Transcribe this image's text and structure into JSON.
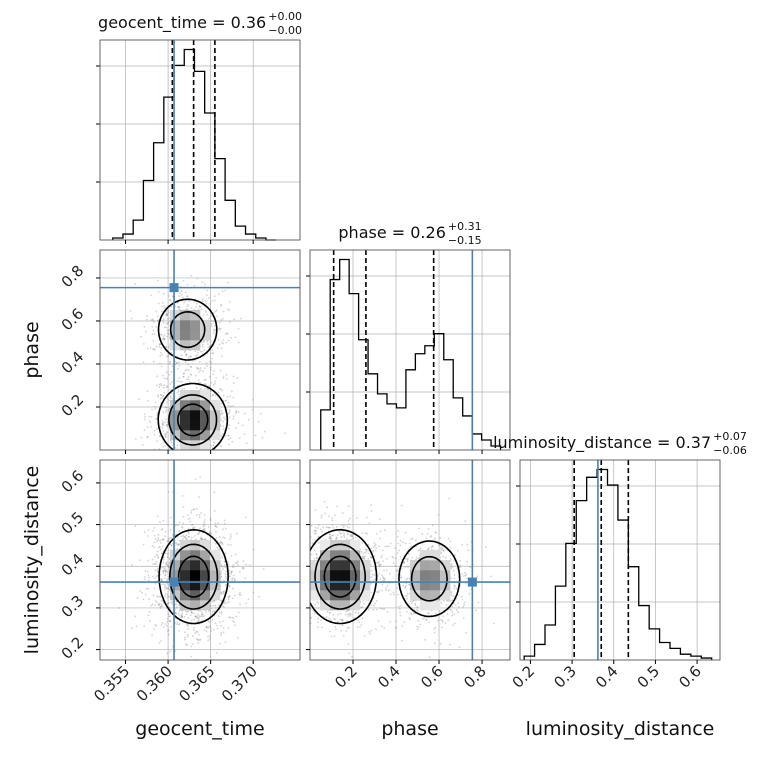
{
  "chart_data": {
    "type": "corner",
    "parameters": [
      "geocent_time",
      "phase",
      "luminosity_distance"
    ],
    "truths": {
      "geocent_time": 0.3607,
      "phase": 0.755,
      "luminosity_distance": 0.362
    },
    "titles": [
      {
        "param": "geocent_time",
        "prefix": "geocent_time = 0.36",
        "plus": "+0.00",
        "minus": "−0.00"
      },
      {
        "param": "phase",
        "prefix": "phase = 0.26",
        "plus": "+0.31",
        "minus": "−0.15"
      },
      {
        "param": "luminosity_distance",
        "prefix": "luminosity_distance = 0.37",
        "plus": "+0.07",
        "minus": "−0.06"
      }
    ],
    "axes": {
      "geocent_time": {
        "range": [
          0.352,
          0.3755
        ],
        "ticks": [
          0.355,
          0.36,
          0.365,
          0.37
        ],
        "tick_labels": [
          "0.355",
          "0.360",
          "0.365",
          "0.370"
        ],
        "label": "geocent_time"
      },
      "phase": {
        "range": [
          0.0,
          0.93
        ],
        "ticks": [
          0.2,
          0.4,
          0.6,
          0.8
        ],
        "tick_labels": [
          "0.2",
          "0.4",
          "0.6",
          "0.8"
        ],
        "label": "phase"
      },
      "luminosity_distance": {
        "range": [
          0.175,
          0.655
        ],
        "ticks": [
          0.2,
          0.3,
          0.4,
          0.5,
          0.6
        ],
        "tick_labels": [
          "0.2",
          "0.3",
          "0.4",
          "0.5",
          "0.6"
        ],
        "label": "luminosity_distance"
      }
    },
    "histograms": {
      "geocent_time": {
        "edges": [
          0.3535,
          0.3547,
          0.3559,
          0.3571,
          0.3583,
          0.3595,
          0.3607,
          0.3619,
          0.3631,
          0.3643,
          0.3655,
          0.3667,
          0.3679,
          0.3691,
          0.3703,
          0.3715,
          0.3727
        ],
        "counts": [
          1,
          3,
          10,
          30,
          49,
          72,
          88,
          96,
          85,
          64,
          41,
          20,
          7,
          3,
          1,
          0
        ],
        "quantiles": [
          0.3605,
          0.363,
          0.3655
        ]
      },
      "phase": {
        "edges": [
          0.05,
          0.094,
          0.138,
          0.182,
          0.226,
          0.27,
          0.314,
          0.358,
          0.402,
          0.446,
          0.49,
          0.534,
          0.578,
          0.622,
          0.666,
          0.71,
          0.754,
          0.798,
          0.842,
          0.886
        ],
        "counts": [
          20,
          85,
          95,
          78,
          55,
          38,
          28,
          23,
          21,
          40,
          48,
          52,
          58,
          45,
          26,
          17,
          8,
          5,
          2
        ],
        "quantiles": [
          0.11,
          0.26,
          0.575
        ]
      },
      "luminosity_distance": {
        "edges": [
          0.185,
          0.21,
          0.235,
          0.26,
          0.285,
          0.31,
          0.335,
          0.36,
          0.385,
          0.41,
          0.435,
          0.46,
          0.485,
          0.51,
          0.535,
          0.56,
          0.585,
          0.61,
          0.635
        ],
        "counts": [
          2,
          8,
          18,
          38,
          60,
          82,
          94,
          98,
          90,
          72,
          48,
          28,
          16,
          9,
          6,
          3,
          2,
          1
        ],
        "quantiles": [
          0.305,
          0.37,
          0.435
        ]
      }
    },
    "pair_densities": [
      {
        "x": "geocent_time",
        "y": "phase",
        "modes": [
          {
            "cx": 0.3629,
            "cy": 0.14,
            "sx": 0.0018,
            "sy": 0.075,
            "w": 1.0
          },
          {
            "cx": 0.3623,
            "cy": 0.56,
            "sx": 0.0017,
            "sy": 0.07,
            "w": 0.6
          }
        ]
      },
      {
        "x": "geocent_time",
        "y": "luminosity_distance",
        "modes": [
          {
            "cx": 0.363,
            "cy": 0.375,
            "sx": 0.0018,
            "sy": 0.05,
            "w": 1.0
          }
        ]
      },
      {
        "x": "phase",
        "y": "luminosity_distance",
        "modes": [
          {
            "cx": 0.14,
            "cy": 0.375,
            "sx": 0.075,
            "sy": 0.05,
            "w": 1.0
          },
          {
            "cx": 0.555,
            "cy": 0.37,
            "sx": 0.07,
            "sy": 0.045,
            "w": 0.6
          }
        ]
      }
    ],
    "grid": true,
    "colors": {
      "truth": "#4682b4",
      "line": "#000000",
      "density_max": "#000000",
      "grid": "#b0b0b0",
      "scatter": "#808080"
    }
  }
}
